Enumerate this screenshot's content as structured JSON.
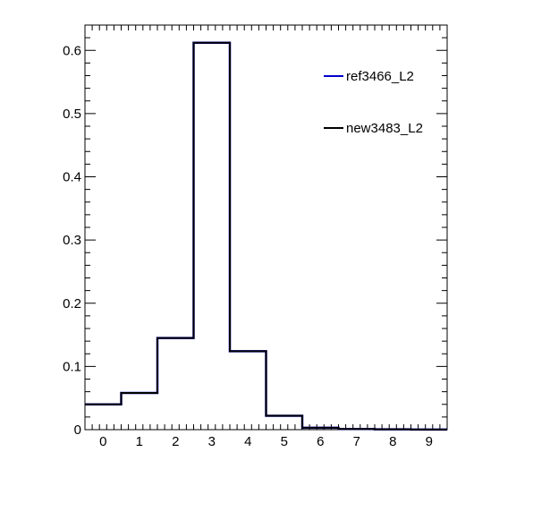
{
  "chart_data": {
    "type": "histogram",
    "title": "",
    "xlabel": "",
    "ylabel": "",
    "xlim": [
      -0.5,
      9.5
    ],
    "ylim": [
      0,
      0.64
    ],
    "x_ticks": [
      0,
      1,
      2,
      3,
      4,
      5,
      6,
      7,
      8,
      9
    ],
    "y_ticks": [
      0,
      0.1,
      0.2,
      0.3,
      0.4,
      0.5,
      0.6
    ],
    "y_tick_labels": [
      "0",
      "0.1",
      "0.2",
      "0.3",
      "0.4",
      "0.5",
      "0.6"
    ],
    "bin_edges": [
      -0.5,
      0.5,
      1.5,
      2.5,
      3.5,
      4.5,
      5.5,
      6.5,
      7.5,
      8.5,
      9.5
    ],
    "grid": false,
    "legend_position": "top-right",
    "series": [
      {
        "name": "ref3466_L2",
        "color": "#0000cc",
        "values": [
          0.04,
          0.058,
          0.145,
          0.612,
          0.124,
          0.022,
          0.003,
          0.001,
          0.0005,
          0.0002
        ]
      },
      {
        "name": "new3483_L2",
        "color": "#000000",
        "values": [
          0.04,
          0.058,
          0.145,
          0.612,
          0.124,
          0.022,
          0.003,
          0.001,
          0.0005,
          0.0002
        ]
      }
    ]
  }
}
